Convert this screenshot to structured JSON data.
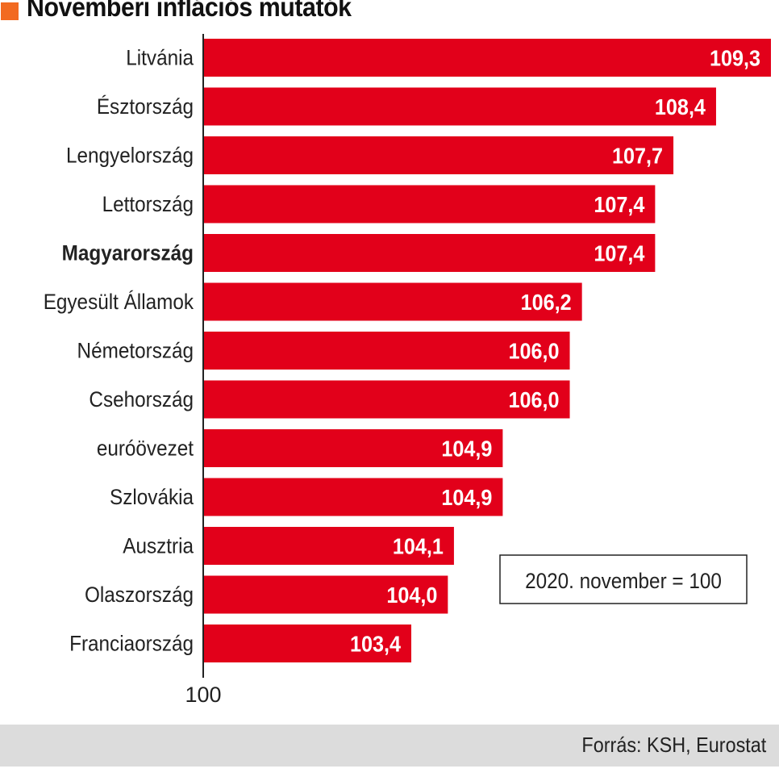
{
  "header": {
    "title": "Novemberi inflációs mutatók",
    "accent_color": "#f26a21"
  },
  "chart_data": {
    "type": "bar",
    "orientation": "horizontal",
    "baseline": 100,
    "xlim": [
      100,
      109.3
    ],
    "categories": [
      "Litvánia",
      "Észtország",
      "Lengyelország",
      "Lettország",
      "Magyarország",
      "Egyesült Államok",
      "Németország",
      "Csehország",
      "euróövezet",
      "Szlovákia",
      "Ausztria",
      "Olaszország",
      "Franciaország"
    ],
    "values": [
      109.3,
      108.4,
      107.7,
      107.4,
      107.4,
      106.2,
      106.0,
      106.0,
      104.9,
      104.9,
      104.1,
      104.0,
      103.4
    ],
    "value_labels": [
      "109,3",
      "108,4",
      "107,7",
      "107,4",
      "107,4",
      "106,2",
      "106,0",
      "106,0",
      "104,9",
      "104,9",
      "104,1",
      "104,0",
      "103,4"
    ],
    "highlight_category": "Magyarország",
    "axis_tick_label": "100",
    "annotation": "2020. november = 100",
    "bar_color": "#e2001a",
    "value_label_color": "#ffffff"
  },
  "footer": {
    "source": "Forrás: KSH, Eurostat"
  }
}
